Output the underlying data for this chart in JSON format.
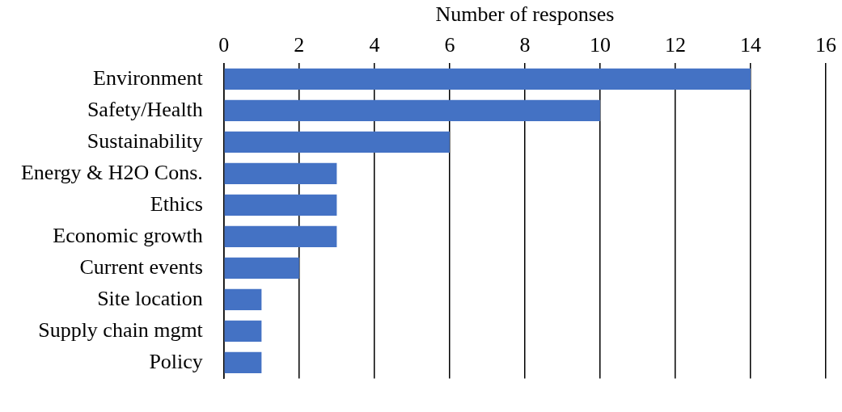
{
  "chart_data": {
    "type": "bar",
    "orientation": "horizontal",
    "xlabel": "Number of responses",
    "categories": [
      "Environment",
      "Safety/Health",
      "Sustainability",
      "Energy & H2O Cons.",
      "Ethics",
      "Economic growth",
      "Current events",
      "Site location",
      "Supply chain mgmt",
      "Policy"
    ],
    "values": [
      14,
      10,
      6,
      3,
      3,
      3,
      2,
      1,
      1,
      1
    ],
    "color": "#4472c4",
    "xlim": [
      0,
      16
    ],
    "xticks": [
      0,
      2,
      4,
      6,
      8,
      10,
      12,
      14,
      16
    ],
    "grid": "x",
    "legend": false
  }
}
